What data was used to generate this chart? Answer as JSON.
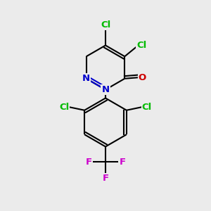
{
  "bg_color": "#ebebeb",
  "atom_colors": {
    "C": "#000000",
    "N": "#0000cc",
    "O": "#cc0000",
    "Cl": "#00bb00",
    "F": "#cc00cc"
  },
  "bond_color": "#000000",
  "bond_width": 1.5,
  "ring_r": 1.05,
  "ph_r": 1.15,
  "label_fontsize": 9.5
}
